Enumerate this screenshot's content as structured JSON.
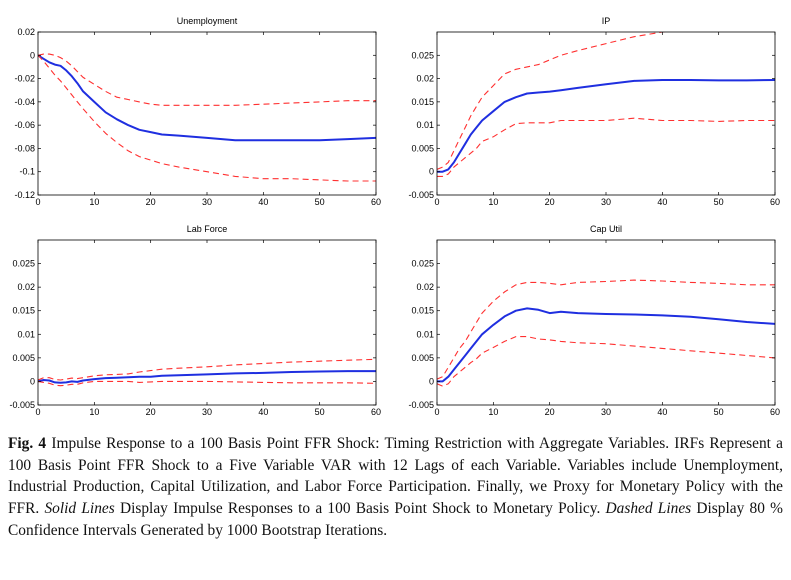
{
  "chart_data": [
    {
      "type": "line",
      "title": "Unemployment",
      "xlim": [
        0,
        60
      ],
      "ylim": [
        -0.12,
        0.02
      ],
      "x_ticks": [
        0,
        10,
        20,
        30,
        40,
        50,
        60
      ],
      "y_ticks": [
        -0.12,
        -0.1,
        -0.08,
        -0.06,
        -0.04,
        -0.02,
        0,
        0.02
      ],
      "y_tick_labels": [
        "-0.12",
        "-0.1",
        "-0.08",
        "-0.06",
        "-0.04",
        "-0.02",
        "0",
        "0.02"
      ],
      "x": [
        0,
        1,
        2,
        3,
        4,
        5,
        6,
        7,
        8,
        10,
        12,
        14,
        16,
        18,
        20,
        22,
        25,
        30,
        35,
        40,
        45,
        50,
        55,
        60
      ],
      "series": [
        {
          "style": "solid",
          "color": "#1f2fe0",
          "values": [
            0,
            -0.003,
            -0.006,
            -0.008,
            -0.009,
            -0.013,
            -0.018,
            -0.024,
            -0.031,
            -0.04,
            -0.049,
            -0.055,
            -0.06,
            -0.064,
            -0.066,
            -0.068,
            -0.069,
            -0.071,
            -0.073,
            -0.073,
            -0.073,
            -0.073,
            -0.072,
            -0.071
          ]
        },
        {
          "style": "dashed",
          "color": "#ff3030",
          "values": [
            0,
            0.001,
            0.001,
            0,
            -0.002,
            -0.005,
            -0.009,
            -0.014,
            -0.019,
            -0.025,
            -0.031,
            -0.036,
            -0.038,
            -0.04,
            -0.042,
            -0.043,
            -0.043,
            -0.043,
            -0.043,
            -0.042,
            -0.041,
            -0.04,
            -0.039,
            -0.039
          ]
        },
        {
          "style": "dashed",
          "color": "#ff3030",
          "values": [
            0,
            -0.005,
            -0.011,
            -0.017,
            -0.022,
            -0.028,
            -0.034,
            -0.04,
            -0.046,
            -0.057,
            -0.067,
            -0.075,
            -0.082,
            -0.087,
            -0.09,
            -0.093,
            -0.096,
            -0.1,
            -0.104,
            -0.106,
            -0.106,
            -0.107,
            -0.108,
            -0.108
          ]
        }
      ]
    },
    {
      "type": "line",
      "title": "IP",
      "xlim": [
        0,
        60
      ],
      "ylim": [
        -0.005,
        0.03
      ],
      "x_ticks": [
        0,
        10,
        20,
        30,
        40,
        50,
        60
      ],
      "y_ticks": [
        -0.005,
        0,
        0.005,
        0.01,
        0.015,
        0.02,
        0.025
      ],
      "y_tick_labels": [
        "-0.005",
        "0",
        "0.005",
        "0.01",
        "0.015",
        "0.02",
        "0.025"
      ],
      "x": [
        0,
        1,
        2,
        3,
        4,
        5,
        6,
        7,
        8,
        10,
        12,
        14,
        16,
        18,
        20,
        22,
        25,
        30,
        35,
        40,
        45,
        50,
        55,
        60
      ],
      "series": [
        {
          "style": "solid",
          "color": "#1f2fe0",
          "values": [
            0,
            0,
            0.0005,
            0.002,
            0.004,
            0.006,
            0.008,
            0.0095,
            0.011,
            0.013,
            0.015,
            0.016,
            0.0168,
            0.017,
            0.0172,
            0.0175,
            0.018,
            0.0188,
            0.0195,
            0.0197,
            0.0197,
            0.0196,
            0.0196,
            0.0197
          ]
        },
        {
          "style": "dashed",
          "color": "#ff3030",
          "values": [
            0.0005,
            0.001,
            0.002,
            0.0045,
            0.007,
            0.0095,
            0.012,
            0.014,
            0.016,
            0.0185,
            0.021,
            0.022,
            0.0225,
            0.023,
            0.024,
            0.025,
            0.026,
            0.0275,
            0.029,
            0.03,
            0.0305,
            0.0305,
            0.0305,
            0.0305
          ]
        },
        {
          "style": "dashed",
          "color": "#ff3030",
          "values": [
            -0.001,
            -0.001,
            -0.0005,
            0.001,
            0.002,
            0.003,
            0.004,
            0.005,
            0.0065,
            0.0075,
            0.009,
            0.0103,
            0.0105,
            0.0105,
            0.0105,
            0.011,
            0.011,
            0.011,
            0.0115,
            0.011,
            0.011,
            0.0108,
            0.011,
            0.011
          ]
        }
      ]
    },
    {
      "type": "line",
      "title": "Lab Force",
      "xlim": [
        0,
        60
      ],
      "ylim": [
        -0.005,
        0.03
      ],
      "x_ticks": [
        0,
        10,
        20,
        30,
        40,
        50,
        60
      ],
      "y_ticks": [
        -0.005,
        0,
        0.005,
        0.01,
        0.015,
        0.02,
        0.025
      ],
      "y_tick_labels": [
        "-0.005",
        "0",
        "0.005",
        "0.01",
        "0.015",
        "0.02",
        "0.025"
      ],
      "x": [
        0,
        1,
        2,
        3,
        4,
        5,
        6,
        7,
        8,
        10,
        12,
        14,
        16,
        18,
        20,
        22,
        25,
        30,
        35,
        40,
        45,
        50,
        55,
        60
      ],
      "series": [
        {
          "style": "solid",
          "color": "#1f2fe0",
          "values": [
            0,
            0.0003,
            0.0002,
            -0.0002,
            -0.0003,
            -0.0002,
            0,
            -0.0001,
            0.0002,
            0.0005,
            0.0007,
            0.0008,
            0.0009,
            0.001,
            0.001,
            0.0012,
            0.0013,
            0.0015,
            0.0017,
            0.0018,
            0.002,
            0.0021,
            0.0022,
            0.0022
          ]
        },
        {
          "style": "dashed",
          "color": "#ff3030",
          "values": [
            0.0003,
            0.0008,
            0.0008,
            0.0004,
            0.0003,
            0.0005,
            0.0007,
            0.0006,
            0.0008,
            0.0012,
            0.0014,
            0.0015,
            0.0016,
            0.002,
            0.0023,
            0.0026,
            0.0028,
            0.0031,
            0.0035,
            0.0038,
            0.0041,
            0.0043,
            0.0045,
            0.0047
          ]
        },
        {
          "style": "dashed",
          "color": "#ff3030",
          "values": [
            0,
            -0.0002,
            -0.0004,
            -0.0008,
            -0.0009,
            -0.0008,
            -0.0006,
            -0.0006,
            -0.0003,
            0,
            0,
            0,
            0,
            -0.0002,
            -0.0001,
            0,
            0,
            0,
            -0.0001,
            -0.0002,
            -0.0003,
            -0.0003,
            -0.0003,
            -0.0004
          ]
        }
      ]
    },
    {
      "type": "line",
      "title": "Cap Util",
      "xlim": [
        0,
        60
      ],
      "ylim": [
        -0.005,
        0.03
      ],
      "x_ticks": [
        0,
        10,
        20,
        30,
        40,
        50,
        60
      ],
      "y_ticks": [
        -0.005,
        0,
        0.005,
        0.01,
        0.015,
        0.02,
        0.025
      ],
      "y_tick_labels": [
        "-0.005",
        "0",
        "0.005",
        "0.01",
        "0.015",
        "0.02",
        "0.025"
      ],
      "x": [
        0,
        1,
        2,
        3,
        4,
        5,
        6,
        7,
        8,
        10,
        12,
        14,
        16,
        18,
        20,
        22,
        25,
        30,
        35,
        40,
        45,
        50,
        55,
        60
      ],
      "series": [
        {
          "style": "solid",
          "color": "#1f2fe0",
          "values": [
            0,
            0,
            0.001,
            0.0025,
            0.004,
            0.0055,
            0.007,
            0.0085,
            0.01,
            0.012,
            0.0138,
            0.015,
            0.0155,
            0.0152,
            0.0145,
            0.0148,
            0.0145,
            0.0143,
            0.0142,
            0.014,
            0.0137,
            0.0132,
            0.0126,
            0.0122
          ]
        },
        {
          "style": "dashed",
          "color": "#ff3030",
          "values": [
            0.0005,
            0.001,
            0.003,
            0.005,
            0.007,
            0.0085,
            0.0105,
            0.0125,
            0.0145,
            0.017,
            0.019,
            0.0205,
            0.021,
            0.021,
            0.0208,
            0.0205,
            0.021,
            0.0212,
            0.0215,
            0.0213,
            0.021,
            0.0208,
            0.0205,
            0.0205
          ]
        },
        {
          "style": "dashed",
          "color": "#ff3030",
          "values": [
            -0.0005,
            -0.001,
            -0.0005,
            0.001,
            0.002,
            0.003,
            0.004,
            0.0048,
            0.006,
            0.0072,
            0.0085,
            0.0095,
            0.0095,
            0.009,
            0.0088,
            0.0085,
            0.0082,
            0.008,
            0.0075,
            0.007,
            0.0065,
            0.006,
            0.0055,
            0.005
          ]
        }
      ]
    }
  ],
  "caption": {
    "label": "Fig. 4",
    "part1": " Impulse Response to a 100 Basis Point FFR Shock: Timing Restriction with Aggregate Variables. IRFs Represent a 100 Basis Point FFR Shock to a Five Variable VAR with 12 Lags of each Variable. Variables include Unemployment, Industrial Production, Capital Utilization, and Labor Force Participation. Finally, we Proxy for Monetary Policy with the FFR. ",
    "solid_lines": "Solid Lines",
    "part2": " Display Impulse Responses to a 100 Basis Point Shock to Monetary Policy. ",
    "dashed_lines": "Dashed Lines",
    "part3": " Display 80 % Confidence Intervals Generated by 1000 Bootstrap Iterations."
  }
}
